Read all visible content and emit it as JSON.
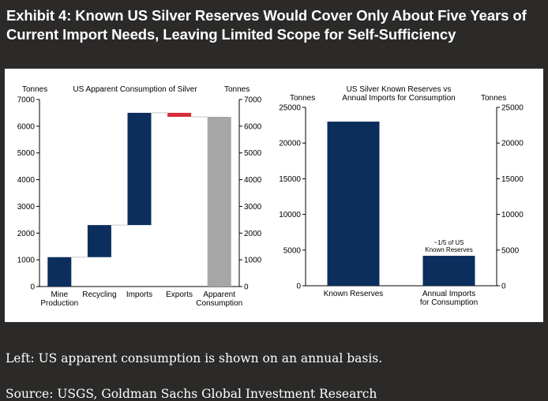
{
  "title_lines": [
    "Exhibit 4: Known US Silver Reserves Would Cover Only About Five Years of",
    "Current Import Needs, Leaving Limited Scope for Self-Sufficiency"
  ],
  "footnote": "Left: US apparent consumption is shown on an annual basis.",
  "source": "Source: USGS, Goldman Sachs Global Investment Research",
  "chart_data": [
    {
      "type": "bar",
      "subtype": "waterfall",
      "title": "US Apparent Consumption of Silver",
      "ylabel_left": "Tonnes",
      "ylabel_right": "Tonnes",
      "ylim": [
        0,
        7000
      ],
      "yticks": [
        0,
        1000,
        2000,
        3000,
        4000,
        5000,
        6000,
        7000
      ],
      "categories": [
        [
          "Mine",
          "Production"
        ],
        [
          "Recycling"
        ],
        [
          "Imports"
        ],
        [
          "Exports"
        ],
        [
          "Apparent",
          "Consumption"
        ]
      ],
      "bars": [
        {
          "start": 0,
          "end": 1100,
          "color": "#0b2e5c"
        },
        {
          "start": 1100,
          "end": 2300,
          "color": "#0b2e5c"
        },
        {
          "start": 2300,
          "end": 6500,
          "color": "#0b2e5c"
        },
        {
          "start": 6500,
          "end": 6350,
          "color": "#d62f3a"
        },
        {
          "start": 0,
          "end": 6350,
          "color": "#a6a6a6"
        }
      ]
    },
    {
      "type": "bar",
      "title_lines": [
        "US Silver Known Reserves vs",
        "Annual Imports for Consumption"
      ],
      "ylabel_left": "Tonnes",
      "ylabel_right": "Tonnes",
      "ylim": [
        0,
        25000
      ],
      "yticks": [
        0,
        5000,
        10000,
        15000,
        20000,
        25000
      ],
      "categories": [
        [
          "Known Reserves"
        ],
        [
          "Annual Imports",
          "for Consumption"
        ]
      ],
      "values": [
        23000,
        4200
      ],
      "color": "#0b2e5c",
      "annotation_lines": [
        "~1/5 of US",
        "Known Reserves"
      ]
    }
  ]
}
